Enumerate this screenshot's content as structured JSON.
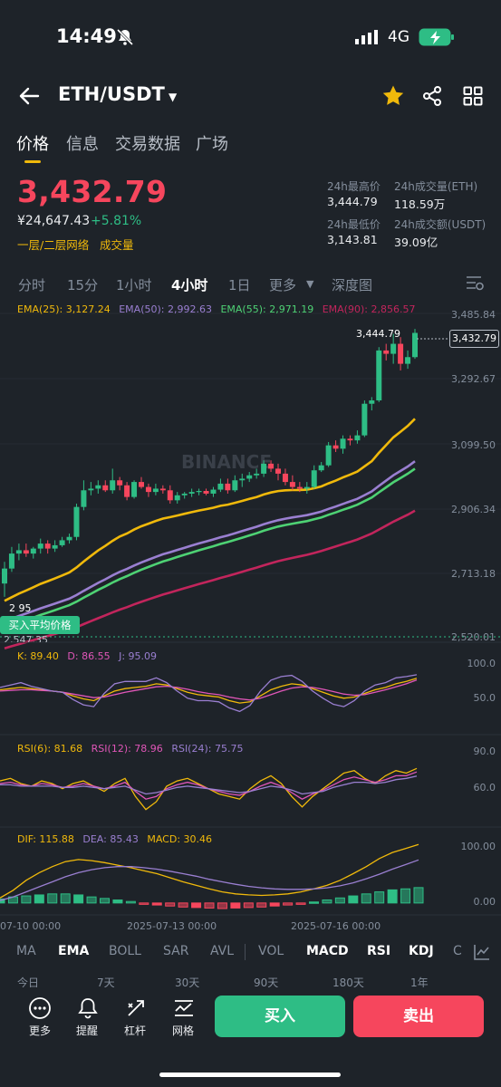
{
  "status": {
    "time": "14:49",
    "network": "4G"
  },
  "header": {
    "pair": "ETH/USDT"
  },
  "tabs": [
    "价格",
    "信息",
    "交易数据",
    "广场"
  ],
  "price": {
    "last": "3,432.79",
    "cny": "¥24,647.43",
    "change": "+5.81%",
    "order_book_link": "一层/二层网络",
    "volume_link": "成交量"
  },
  "stats": {
    "high_label": "24h最高价",
    "high": "3,444.79",
    "vol_eth_label": "24h成交量(ETH)",
    "vol_eth": "118.59万",
    "low_label": "24h最低价",
    "low": "3,143.81",
    "vol_usdt_label": "24h成交额(USDT)",
    "vol_usdt": "39.09亿"
  },
  "intervals": [
    "分时",
    "15分",
    "1小时",
    "4小时",
    "1日",
    "更多",
    "深度图"
  ],
  "ema_legend": {
    "ema25": "EMA(25): 3,127.24",
    "ema50": "EMA(50): 2,992.63",
    "ema55": "EMA(55): 2,971.19",
    "ema90": "EMA(90): 2,856.57"
  },
  "kdj_legend": {
    "k": "K: 89.40",
    "d": "D: 86.55",
    "j": "J: 95.09"
  },
  "rsi_legend": {
    "r6": "RSI(6): 81.68",
    "r12": "RSI(12): 78.96",
    "r24": "RSI(24): 75.75"
  },
  "macd_legend": {
    "dif": "DIF: 115.88",
    "dea": "DEA: 85.43",
    "macd": "MACD: 30.46"
  },
  "price_axis": [
    "3,485.84",
    "3,292.67",
    "3,099.50",
    "2,906.34",
    "2,713.18",
    "2,520.01"
  ],
  "kdj_axis": [
    "100.0",
    "50.0"
  ],
  "rsi_axis": [
    "90.0",
    "60.0"
  ],
  "macd_axis": [
    "100.00",
    "0.00"
  ],
  "chart_marks": {
    "current_price": "3,432.79",
    "high_price": "3,444.79",
    "buy_avg_label": "买入平均价格",
    "low_price_partial": "2,547.35",
    "left_marker_partial": "2 95",
    "watermark": "BINANCE"
  },
  "dates": [
    "07-10 00:00",
    "2025-07-13 00:00",
    "2025-07-16 00:00"
  ],
  "indicators": [
    "MA",
    "EMA",
    "BOLL",
    "SAR",
    "AVL",
    "VOL",
    "MACD",
    "RSI",
    "KDJ",
    "C"
  ],
  "ranges": [
    "今日",
    "7天",
    "30天",
    "90天",
    "180天",
    "1年"
  ],
  "bottom": {
    "more": "更多",
    "alert": "提醒",
    "margin": "杠杆",
    "grid": "网格",
    "buy": "买入",
    "sell": "卖出"
  },
  "colors": {
    "up": "#2ebd85",
    "down": "#f6465d",
    "accent": "#f0b90b",
    "ema25": "#f0b90b",
    "ema50": "#9a7fd1",
    "ema55": "#4ed274",
    "ema90": "#c2255c"
  },
  "chart_data": [
    {
      "type": "candlestick",
      "title": "ETH/USDT 4小时",
      "ylim": [
        2520.01,
        3485.84
      ],
      "candles": [
        {
          "o": 2680,
          "h": 2745,
          "l": 2640,
          "c": 2725
        },
        {
          "o": 2725,
          "h": 2790,
          "l": 2715,
          "c": 2770
        },
        {
          "o": 2770,
          "h": 2800,
          "l": 2750,
          "c": 2780
        },
        {
          "o": 2780,
          "h": 2800,
          "l": 2760,
          "c": 2770
        },
        {
          "o": 2770,
          "h": 2790,
          "l": 2755,
          "c": 2785
        },
        {
          "o": 2785,
          "h": 2815,
          "l": 2770,
          "c": 2800
        },
        {
          "o": 2800,
          "h": 2810,
          "l": 2770,
          "c": 2785
        },
        {
          "o": 2785,
          "h": 2810,
          "l": 2775,
          "c": 2795
        },
        {
          "o": 2795,
          "h": 2820,
          "l": 2790,
          "c": 2810
        },
        {
          "o": 2810,
          "h": 2830,
          "l": 2800,
          "c": 2820
        },
        {
          "o": 2820,
          "h": 2920,
          "l": 2810,
          "c": 2910
        },
        {
          "o": 2910,
          "h": 2990,
          "l": 2900,
          "c": 2960
        },
        {
          "o": 2960,
          "h": 2985,
          "l": 2945,
          "c": 2965
        },
        {
          "o": 2965,
          "h": 2990,
          "l": 2950,
          "c": 2975
        },
        {
          "o": 2975,
          "h": 2990,
          "l": 2955,
          "c": 2960
        },
        {
          "o": 2960,
          "h": 3025,
          "l": 2950,
          "c": 2990
        },
        {
          "o": 2990,
          "h": 3000,
          "l": 2960,
          "c": 2975
        },
        {
          "o": 2975,
          "h": 2985,
          "l": 2930,
          "c": 2940
        },
        {
          "o": 2940,
          "h": 2990,
          "l": 2935,
          "c": 2985
        },
        {
          "o": 2985,
          "h": 3000,
          "l": 2965,
          "c": 2970
        },
        {
          "o": 2970,
          "h": 2980,
          "l": 2940,
          "c": 2955
        },
        {
          "o": 2955,
          "h": 2980,
          "l": 2945,
          "c": 2965
        },
        {
          "o": 2965,
          "h": 2975,
          "l": 2950,
          "c": 2960
        },
        {
          "o": 2960,
          "h": 2975,
          "l": 2920,
          "c": 2930
        },
        {
          "o": 2930,
          "h": 2955,
          "l": 2920,
          "c": 2945
        },
        {
          "o": 2945,
          "h": 2955,
          "l": 2935,
          "c": 2950
        },
        {
          "o": 2950,
          "h": 2965,
          "l": 2940,
          "c": 2955
        },
        {
          "o": 2955,
          "h": 2965,
          "l": 2945,
          "c": 2958
        },
        {
          "o": 2958,
          "h": 2965,
          "l": 2945,
          "c": 2950
        },
        {
          "o": 2950,
          "h": 2970,
          "l": 2940,
          "c": 2962
        },
        {
          "o": 2962,
          "h": 2995,
          "l": 2955,
          "c": 2980
        },
        {
          "o": 2980,
          "h": 2995,
          "l": 2950,
          "c": 2960
        },
        {
          "o": 2960,
          "h": 3005,
          "l": 2955,
          "c": 2990
        },
        {
          "o": 2990,
          "h": 3010,
          "l": 2970,
          "c": 2995
        },
        {
          "o": 2995,
          "h": 3015,
          "l": 2985,
          "c": 3005
        },
        {
          "o": 3005,
          "h": 3025,
          "l": 2995,
          "c": 3010
        },
        {
          "o": 3010,
          "h": 3050,
          "l": 3000,
          "c": 3040
        },
        {
          "o": 3040,
          "h": 3050,
          "l": 3015,
          "c": 3025
        },
        {
          "o": 3025,
          "h": 3040,
          "l": 2990,
          "c": 3010
        },
        {
          "o": 3010,
          "h": 3025,
          "l": 2975,
          "c": 2985
        },
        {
          "o": 2985,
          "h": 3005,
          "l": 2960,
          "c": 2970
        },
        {
          "o": 2970,
          "h": 2985,
          "l": 2955,
          "c": 2965
        },
        {
          "o": 2965,
          "h": 2985,
          "l": 2950,
          "c": 2970
        },
        {
          "o": 2970,
          "h": 3035,
          "l": 2965,
          "c": 3020
        },
        {
          "o": 3020,
          "h": 3045,
          "l": 3015,
          "c": 3035
        },
        {
          "o": 3035,
          "h": 3105,
          "l": 3030,
          "c": 3095
        },
        {
          "o": 3095,
          "h": 3110,
          "l": 3075,
          "c": 3085
        },
        {
          "o": 3085,
          "h": 3125,
          "l": 3070,
          "c": 3115
        },
        {
          "o": 3115,
          "h": 3125,
          "l": 3095,
          "c": 3110
        },
        {
          "o": 3110,
          "h": 3140,
          "l": 3100,
          "c": 3125
        },
        {
          "o": 3125,
          "h": 3230,
          "l": 3120,
          "c": 3220
        },
        {
          "o": 3220,
          "h": 3240,
          "l": 3200,
          "c": 3230
        },
        {
          "o": 3230,
          "h": 3390,
          "l": 3225,
          "c": 3380
        },
        {
          "o": 3380,
          "h": 3400,
          "l": 3350,
          "c": 3370
        },
        {
          "o": 3370,
          "h": 3430,
          "l": 3340,
          "c": 3400
        },
        {
          "o": 3400,
          "h": 3420,
          "l": 3320,
          "c": 3340
        },
        {
          "o": 3340,
          "h": 3380,
          "l": 3325,
          "c": 3360
        },
        {
          "o": 3360,
          "h": 3444.79,
          "l": 3355,
          "c": 3432.79
        }
      ]
    },
    {
      "type": "line",
      "title": "KDJ",
      "ylim": [
        0,
        110
      ],
      "series": [
        {
          "name": "K: 89.40",
          "values": [
            70,
            72,
            74,
            72,
            70,
            68,
            66,
            60,
            55,
            52,
            60,
            68,
            72,
            74,
            76,
            80,
            78,
            72,
            66,
            62,
            60,
            58,
            52,
            48,
            50,
            60,
            70,
            76,
            80,
            78,
            72,
            66,
            60,
            56,
            58,
            64,
            70,
            74,
            80,
            84,
            89.4
          ]
        },
        {
          "name": "D: 86.55",
          "values": [
            68,
            69,
            70,
            70,
            69,
            68,
            66,
            63,
            60,
            57,
            58,
            62,
            66,
            69,
            72,
            75,
            76,
            74,
            71,
            67,
            64,
            62,
            58,
            55,
            53,
            56,
            62,
            68,
            73,
            75,
            74,
            71,
            67,
            63,
            61,
            62,
            66,
            70,
            75,
            80,
            86.55
          ]
        },
        {
          "name": "J: 95.09",
          "values": [
            74,
            78,
            82,
            76,
            72,
            68,
            66,
            54,
            45,
            42,
            64,
            80,
            84,
            84,
            84,
            90,
            82,
            68,
            56,
            52,
            52,
            50,
            40,
            34,
            44,
            68,
            86,
            92,
            94,
            84,
            68,
            56,
            46,
            42,
            52,
            68,
            78,
            82,
            90,
            92,
            95.09
          ]
        }
      ]
    },
    {
      "type": "line",
      "title": "RSI",
      "ylim": [
        40,
        100
      ],
      "series": [
        {
          "name": "RSI(6): 81.68",
          "values": [
            72,
            74,
            70,
            68,
            72,
            70,
            66,
            70,
            72,
            68,
            64,
            70,
            74,
            60,
            50,
            56,
            68,
            72,
            74,
            70,
            66,
            62,
            60,
            58,
            66,
            72,
            76,
            70,
            60,
            52,
            60,
            66,
            72,
            78,
            80,
            74,
            70,
            76,
            80,
            78,
            81.68
          ]
        },
        {
          "name": "RSI(12): 78.96",
          "values": [
            70,
            71,
            69,
            68,
            70,
            69,
            67,
            68,
            70,
            68,
            66,
            68,
            71,
            64,
            58,
            60,
            66,
            69,
            71,
            69,
            66,
            64,
            62,
            61,
            64,
            68,
            71,
            68,
            63,
            58,
            62,
            65,
            69,
            73,
            75,
            73,
            71,
            73,
            76,
            76,
            78.96
          ]
        },
        {
          "name": "RSI(24): 75.75",
          "values": [
            69,
            69,
            68,
            68,
            68,
            68,
            67,
            67,
            68,
            67,
            66,
            67,
            68,
            65,
            62,
            63,
            65,
            67,
            68,
            67,
            66,
            65,
            64,
            63,
            64,
            66,
            68,
            67,
            65,
            62,
            63,
            64,
            67,
            69,
            71,
            71,
            70,
            71,
            73,
            74,
            75.75
          ]
        }
      ]
    },
    {
      "type": "bar",
      "title": "MACD",
      "ylim": [
        -20,
        120
      ],
      "series": [
        {
          "name": "DIF: 115.88",
          "values": [
            10,
            25,
            45,
            60,
            72,
            82,
            86,
            84,
            80,
            75,
            70,
            64,
            58,
            50,
            42,
            35,
            28,
            22,
            18,
            16,
            15,
            16,
            18,
            22,
            28,
            35,
            45,
            58,
            72,
            88,
            100,
            108,
            115.88
          ]
        },
        {
          "name": "DEA: 85.43",
          "values": [
            5,
            12,
            22,
            32,
            42,
            52,
            60,
            66,
            70,
            72,
            72,
            70,
            67,
            63,
            58,
            53,
            47,
            42,
            37,
            33,
            30,
            28,
            27,
            27,
            28,
            30,
            34,
            40,
            48,
            57,
            67,
            76,
            85.43
          ]
        },
        {
          "name": "MACD: 30.46",
          "values": [
            8,
            12,
            14,
            16,
            18,
            18,
            16,
            12,
            9,
            6,
            3,
            -2,
            -4,
            -6,
            -8,
            -9,
            -10,
            -11,
            -10,
            -9,
            -8,
            -6,
            -4,
            -2,
            2,
            6,
            10,
            14,
            18,
            22,
            26,
            28,
            30.46
          ]
        }
      ]
    }
  ]
}
